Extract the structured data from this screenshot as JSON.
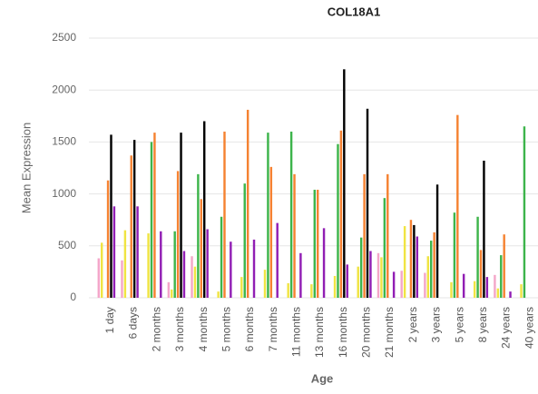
{
  "chart_data": {
    "type": "bar",
    "title": "COL18A1",
    "xlabel": "Age",
    "ylabel": "Mean Expression",
    "categories": [
      "1 day",
      "6 days",
      "2 months",
      "3 months",
      "4 months",
      "5 months",
      "6 months",
      "7 months",
      "11 months",
      "13 months",
      "16 months",
      "20 months",
      "21 months",
      "2 years",
      "3 years",
      "5 years",
      "8 years",
      "24 years",
      "40 years"
    ],
    "series": [
      {
        "color": "#f4a6c8",
        "values": [
          380,
          360,
          0,
          150,
          400,
          0,
          0,
          0,
          0,
          0,
          0,
          0,
          430,
          260,
          240,
          0,
          0,
          220,
          0
        ]
      },
      {
        "color": "#f0e442",
        "values": [
          530,
          650,
          620,
          80,
          300,
          60,
          200,
          270,
          140,
          130,
          210,
          300,
          390,
          690,
          400,
          150,
          160,
          90,
          130
        ]
      },
      {
        "color": "#3db44b",
        "values": [
          0,
          0,
          1500,
          640,
          1190,
          780,
          1100,
          1590,
          1600,
          1040,
          1480,
          580,
          960,
          0,
          550,
          820,
          780,
          410,
          1650
        ]
      },
      {
        "color": "#f58231",
        "values": [
          1130,
          1370,
          1590,
          1220,
          950,
          1600,
          1810,
          1260,
          1190,
          1040,
          1610,
          1190,
          1190,
          750,
          630,
          1760,
          460,
          610,
          0
        ]
      },
      {
        "color": "#000000",
        "values": [
          1570,
          1520,
          0,
          1590,
          1700,
          0,
          0,
          0,
          0,
          0,
          2200,
          1820,
          0,
          700,
          1090,
          0,
          1320,
          0,
          0
        ]
      },
      {
        "color": "#911eb4",
        "values": [
          880,
          880,
          640,
          450,
          660,
          540,
          560,
          720,
          430,
          670,
          320,
          450,
          250,
          590,
          0,
          230,
          200,
          60,
          0
        ]
      }
    ],
    "ylim": [
      0,
      2500
    ],
    "yticks": [
      0,
      500,
      1000,
      1500,
      2000,
      2500
    ],
    "grid": true
  }
}
